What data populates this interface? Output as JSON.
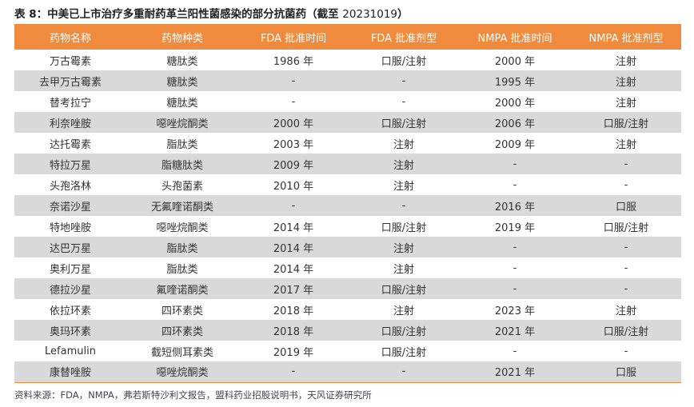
{
  "title": {
    "prefix": "表 8：",
    "text": "中美已上市治疗多重耐药革兰阳性菌感染的部分抗菌药（截至 ",
    "date": "20231019",
    "suffix": "）"
  },
  "table": {
    "headers": [
      "药物名称",
      "药物种类",
      "FDA 批准时间",
      "FDA 批准剂型",
      "NMPA 批准时间",
      "NMPA 批准剂型"
    ],
    "rows": [
      [
        "万古霉素",
        "糖肽类",
        "1986 年",
        "口服/注射",
        "2000 年",
        "注射"
      ],
      [
        "去甲万古霉素",
        "糖肽类",
        "-",
        "-",
        "1995 年",
        "注射"
      ],
      [
        "替考拉宁",
        "糖肽类",
        "-",
        "-",
        "2000 年",
        "注射"
      ],
      [
        "利奈唑胺",
        "噁唑烷酮类",
        "2000 年",
        "口服/注射",
        "2006 年",
        "口服/注射"
      ],
      [
        "达托霉素",
        "脂肽类",
        "2003 年",
        "注射",
        "2009 年",
        "注射"
      ],
      [
        "特拉万星",
        "脂糖肽类",
        "2009 年",
        "注射",
        "-",
        "-"
      ],
      [
        "头孢洛林",
        "头孢菌素",
        "2010 年",
        "注射",
        "-",
        "-"
      ],
      [
        "奈诺沙星",
        "无氟喹诺酮类",
        "-",
        "-",
        "2016 年",
        "口服"
      ],
      [
        "特地唑胺",
        "噁唑烷酮类",
        "2014 年",
        "口服/注射",
        "2019 年",
        "口服/注射"
      ],
      [
        "达巴万星",
        "脂肽类",
        "2014 年",
        "注射",
        "-",
        "-"
      ],
      [
        "奥利万星",
        "脂肽类",
        "2014 年",
        "注射",
        "-",
        "-"
      ],
      [
        "德拉沙星",
        "氟喹诺酮类",
        "2017 年",
        "口服/注射",
        "-",
        "-"
      ],
      [
        "依拉环素",
        "四环素类",
        "2018 年",
        "注射",
        "2023 年",
        "注射"
      ],
      [
        "奥玛环素",
        "四环素类",
        "2018 年",
        "口服/注射",
        "2021 年",
        "口服/注射"
      ],
      [
        "Lefamulin",
        "截短侧耳素类",
        "2019 年",
        "口服/注射",
        "-",
        "-"
      ],
      [
        "康替唑胺",
        "噁唑烷酮类",
        "-",
        "-",
        "2021 年",
        "口服"
      ]
    ]
  },
  "source": "资料来源：FDA，NMPA，弗若斯特沙利文报告，盟科药业招股说明书，天风证券研究所",
  "colors": {
    "header_bg": "#F08A3C",
    "header_text": "#FFFFFF",
    "stripe_bg": "#D9D9D9"
  }
}
